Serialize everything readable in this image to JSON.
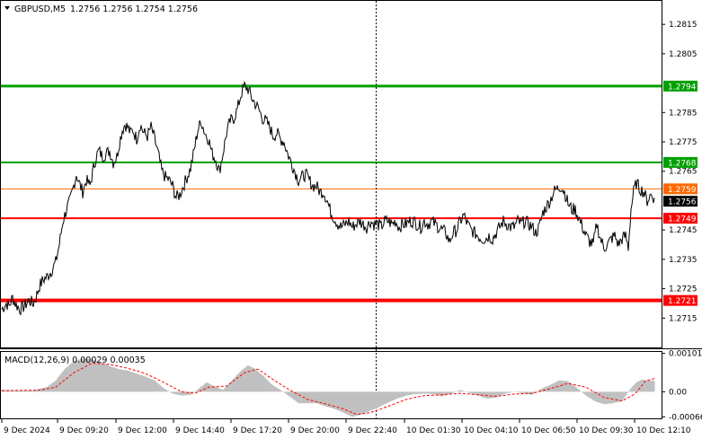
{
  "window": {
    "symbol": "GBPUSD,M5",
    "ohlc": "1.2756 1.2756 1.2754 1.2756"
  },
  "price_axis": {
    "ticks": [
      "1.2815",
      "1.2805",
      "1.2785",
      "1.2775",
      "1.2765",
      "1.2745",
      "1.2735",
      "1.2725",
      "1.2715"
    ],
    "range": [
      1.2705,
      1.2823
    ]
  },
  "levels": [
    {
      "price": 1.2794,
      "label": "1.2794",
      "color": "#00a000"
    },
    {
      "price": 1.2768,
      "label": "1.2768",
      "color": "#00a000"
    },
    {
      "price": 1.2759,
      "label": "1.2759",
      "color": "#ff6a00"
    },
    {
      "price": 1.2749,
      "label": "1.2749",
      "color": "#ff0000"
    },
    {
      "price": 1.2721,
      "label": "1.2721",
      "color": "#ff0000"
    }
  ],
  "current_price": {
    "label": "1.2756",
    "price": 1.2756,
    "color": "#000000"
  },
  "time_axis": {
    "labels": [
      "9 Dec 2024",
      "9 Dec 09:20",
      "9 Dec 12:00",
      "9 Dec 14:40",
      "9 Dec 17:20",
      "9 Dec 20:00",
      "9 Dec 22:40",
      "10 Dec 01:30",
      "10 Dec 04:10",
      "10 Dec 06:50",
      "10 Dec 09:30",
      "10 Dec 12:10"
    ]
  },
  "macd": {
    "title": "MACD(12,26,9) 0.00029 0.00035",
    "ticks": [
      "0.00101",
      "0.00",
      "-0.00066"
    ],
    "range": [
      -0.0007,
      0.00105
    ]
  },
  "chart_data": {
    "type": "line",
    "title": "GBPUSD,M5 1.2756 1.2756 1.2754 1.2756",
    "xlabel": "",
    "ylabel": "",
    "ylim": [
      1.2705,
      1.2823
    ],
    "price_keypoints": [
      [
        0,
        1.2718
      ],
      [
        5,
        1.272
      ],
      [
        8,
        1.2719
      ],
      [
        12,
        1.2722
      ],
      [
        15,
        1.272
      ],
      [
        20,
        1.2718
      ],
      [
        25,
        1.2719
      ],
      [
        30,
        1.2721
      ],
      [
        35,
        1.272
      ],
      [
        38,
        1.2722
      ],
      [
        42,
        1.2726
      ],
      [
        46,
        1.2728
      ],
      [
        50,
        1.2729
      ],
      [
        55,
        1.2731
      ],
      [
        60,
        1.2734
      ],
      [
        64,
        1.274
      ],
      [
        68,
        1.2748
      ],
      [
        72,
        1.2752
      ],
      [
        76,
        1.2755
      ],
      [
        80,
        1.276
      ],
      [
        83,
        1.2764
      ],
      [
        86,
        1.2761
      ],
      [
        90,
        1.2758
      ],
      [
        94,
        1.2762
      ],
      [
        98,
        1.276
      ],
      [
        102,
        1.2766
      ],
      [
        105,
        1.277
      ],
      [
        108,
        1.2772
      ],
      [
        112,
        1.277
      ],
      [
        116,
        1.2771
      ],
      [
        120,
        1.2772
      ],
      [
        124,
        1.2768
      ],
      [
        128,
        1.277
      ],
      [
        131,
        1.2775
      ],
      [
        134,
        1.2779
      ],
      [
        137,
        1.2781
      ],
      [
        140,
        1.278
      ],
      [
        143,
        1.2778
      ],
      [
        146,
        1.2779
      ],
      [
        150,
        1.2776
      ],
      [
        154,
        1.2781
      ],
      [
        158,
        1.2778
      ],
      [
        162,
        1.2777
      ],
      [
        166,
        1.278
      ],
      [
        170,
        1.2776
      ],
      [
        174,
        1.2771
      ],
      [
        178,
        1.2765
      ],
      [
        182,
        1.2763
      ],
      [
        186,
        1.2762
      ],
      [
        190,
        1.276
      ],
      [
        194,
        1.2756
      ],
      [
        198,
        1.2757
      ],
      [
        202,
        1.276
      ],
      [
        206,
        1.2763
      ],
      [
        210,
        1.2766
      ],
      [
        214,
        1.2772
      ],
      [
        218,
        1.2779
      ],
      [
        222,
        1.2782
      ],
      [
        226,
        1.2778
      ],
      [
        230,
        1.2776
      ],
      [
        234,
        1.2771
      ],
      [
        238,
        1.2769
      ],
      [
        242,
        1.2765
      ],
      [
        246,
        1.2771
      ],
      [
        250,
        1.2778
      ],
      [
        254,
        1.2782
      ],
      [
        258,
        1.2783
      ],
      [
        262,
        1.2786
      ],
      [
        266,
        1.2791
      ],
      [
        270,
        1.2794
      ],
      [
        274,
        1.2793
      ],
      [
        278,
        1.279
      ],
      [
        282,
        1.2788
      ],
      [
        286,
        1.2786
      ],
      [
        290,
        1.2783
      ],
      [
        294,
        1.2782
      ],
      [
        298,
        1.278
      ],
      [
        302,
        1.2777
      ],
      [
        306,
        1.2778
      ],
      [
        310,
        1.2776
      ],
      [
        314,
        1.2775
      ],
      [
        318,
        1.2771
      ],
      [
        322,
        1.2768
      ],
      [
        326,
        1.2765
      ],
      [
        330,
        1.2762
      ],
      [
        334,
        1.2763
      ],
      [
        338,
        1.2764
      ],
      [
        342,
        1.2762
      ],
      [
        346,
        1.276
      ],
      [
        350,
        1.276
      ],
      [
        354,
        1.2758
      ],
      [
        358,
        1.2758
      ],
      [
        362,
        1.2755
      ],
      [
        366,
        1.2751
      ],
      [
        370,
        1.2749
      ],
      [
        374,
        1.2747
      ],
      [
        378,
        1.2746
      ],
      [
        382,
        1.2747
      ],
      [
        386,
        1.2748
      ],
      [
        390,
        1.2746
      ],
      [
        394,
        1.2747
      ],
      [
        398,
        1.2748
      ],
      [
        402,
        1.2747
      ],
      [
        406,
        1.2746
      ],
      [
        410,
        1.2748
      ],
      [
        414,
        1.2747
      ],
      [
        418,
        1.2747
      ],
      [
        422,
        1.2746
      ],
      [
        426,
        1.2748
      ],
      [
        430,
        1.2748
      ],
      [
        434,
        1.2747
      ],
      [
        438,
        1.2748
      ],
      [
        442,
        1.2746
      ],
      [
        446,
        1.2747
      ],
      [
        450,
        1.2747
      ],
      [
        454,
        1.2748
      ],
      [
        458,
        1.2748
      ],
      [
        462,
        1.2747
      ],
      [
        466,
        1.2746
      ],
      [
        470,
        1.2748
      ],
      [
        474,
        1.2747
      ],
      [
        478,
        1.2748
      ],
      [
        482,
        1.2747
      ],
      [
        486,
        1.2746
      ],
      [
        490,
        1.2745
      ],
      [
        494,
        1.2744
      ],
      [
        498,
        1.2741
      ],
      [
        502,
        1.2744
      ],
      [
        506,
        1.2745
      ],
      [
        510,
        1.2748
      ],
      [
        514,
        1.275
      ],
      [
        518,
        1.2747
      ],
      [
        522,
        1.2745
      ],
      [
        526,
        1.2744
      ],
      [
        530,
        1.2743
      ],
      [
        534,
        1.2742
      ],
      [
        538,
        1.2742
      ],
      [
        542,
        1.2743
      ],
      [
        546,
        1.2742
      ],
      [
        550,
        1.2744
      ],
      [
        554,
        1.2746
      ],
      [
        558,
        1.2748
      ],
      [
        562,
        1.2747
      ],
      [
        566,
        1.2746
      ],
      [
        570,
        1.2746
      ],
      [
        574,
        1.2748
      ],
      [
        578,
        1.2747
      ],
      [
        582,
        1.2748
      ],
      [
        586,
        1.2747
      ],
      [
        590,
        1.2746
      ],
      [
        594,
        1.2744
      ],
      [
        598,
        1.2746
      ],
      [
        602,
        1.2751
      ],
      [
        606,
        1.2753
      ],
      [
        610,
        1.2755
      ],
      [
        614,
        1.2758
      ],
      [
        618,
        1.2759
      ],
      [
        622,
        1.276
      ],
      [
        626,
        1.2758
      ],
      [
        630,
        1.2754
      ],
      [
        634,
        1.2752
      ],
      [
        638,
        1.2752
      ],
      [
        642,
        1.2749
      ],
      [
        646,
        1.2746
      ],
      [
        650,
        1.2743
      ],
      [
        654,
        1.2741
      ],
      [
        658,
        1.274
      ],
      [
        662,
        1.2747
      ],
      [
        666,
        1.2742
      ],
      [
        670,
        1.2739
      ],
      [
        674,
        1.274
      ],
      [
        678,
        1.2742
      ],
      [
        682,
        1.2743
      ],
      [
        686,
        1.274
      ],
      [
        690,
        1.2742
      ],
      [
        694,
        1.2743
      ],
      [
        697,
        1.2739
      ],
      [
        700,
        1.2752
      ],
      [
        703,
        1.2758
      ],
      [
        706,
        1.2761
      ],
      [
        710,
        1.2759
      ],
      [
        714,
        1.2758
      ],
      [
        718,
        1.2755
      ],
      [
        722,
        1.2757
      ],
      [
        726,
        1.2756
      ]
    ],
    "macd_histogram_keypoints": [
      [
        0,
        5e-05
      ],
      [
        20,
        3e-05
      ],
      [
        35,
        4e-05
      ],
      [
        50,
        0.00012
      ],
      [
        60,
        0.0003
      ],
      [
        70,
        0.0006
      ],
      [
        80,
        0.0008
      ],
      [
        90,
        0.00088
      ],
      [
        100,
        0.00086
      ],
      [
        110,
        0.00078
      ],
      [
        120,
        0.00068
      ],
      [
        130,
        0.0006
      ],
      [
        140,
        0.00056
      ],
      [
        150,
        0.00048
      ],
      [
        160,
        0.0004
      ],
      [
        170,
        0.0003
      ],
      [
        180,
        0.0001
      ],
      [
        190,
        -5e-05
      ],
      [
        200,
        -0.0001
      ],
      [
        210,
        -8e-05
      ],
      [
        220,
        0.0001
      ],
      [
        228,
        0.00025
      ],
      [
        236,
        0.00015
      ],
      [
        246,
        5e-05
      ],
      [
        256,
        0.0003
      ],
      [
        266,
        0.00055
      ],
      [
        274,
        0.0007
      ],
      [
        282,
        0.0006
      ],
      [
        292,
        0.0004
      ],
      [
        300,
        0.0002
      ],
      [
        310,
        5e-05
      ],
      [
        320,
        -0.00012
      ],
      [
        330,
        -0.0003
      ],
      [
        340,
        -0.0003
      ],
      [
        350,
        -0.0003
      ],
      [
        360,
        -0.00038
      ],
      [
        370,
        -0.00045
      ],
      [
        380,
        -0.00055
      ],
      [
        390,
        -0.00066
      ],
      [
        400,
        -0.0006
      ],
      [
        410,
        -0.0005
      ],
      [
        420,
        -0.0004
      ],
      [
        430,
        -0.00028
      ],
      [
        440,
        -0.00018
      ],
      [
        450,
        -0.0001
      ],
      [
        460,
        -6e-05
      ],
      [
        470,
        -5e-05
      ],
      [
        480,
        -6e-05
      ],
      [
        490,
        -0.00012
      ],
      [
        500,
        -5e-05
      ],
      [
        510,
        5e-05
      ],
      [
        520,
        -3e-05
      ],
      [
        530,
        -0.0001
      ],
      [
        540,
        -0.00018
      ],
      [
        550,
        -0.00015
      ],
      [
        560,
        -5e-05
      ],
      [
        570,
        0.0
      ],
      [
        580,
        -4e-05
      ],
      [
        590,
        -8e-05
      ],
      [
        600,
        8e-05
      ],
      [
        610,
        0.00018
      ],
      [
        620,
        0.0003
      ],
      [
        630,
        0.00028
      ],
      [
        640,
        0.0001
      ],
      [
        650,
        -0.0001
      ],
      [
        660,
        -0.00025
      ],
      [
        670,
        -0.00033
      ],
      [
        680,
        -0.0003
      ],
      [
        690,
        -0.00025
      ],
      [
        700,
        0.0001
      ],
      [
        706,
        0.00025
      ],
      [
        712,
        0.00032
      ],
      [
        718,
        0.0003
      ],
      [
        726,
        0.00029
      ]
    ],
    "macd_signal_keypoints": [
      [
        0,
        3e-05
      ],
      [
        40,
        4e-05
      ],
      [
        60,
        0.00012
      ],
      [
        80,
        0.0005
      ],
      [
        100,
        0.00075
      ],
      [
        120,
        0.00072
      ],
      [
        140,
        0.00062
      ],
      [
        160,
        0.00048
      ],
      [
        180,
        0.00025
      ],
      [
        200,
        0.0
      ],
      [
        215,
        -4e-05
      ],
      [
        230,
        0.00012
      ],
      [
        250,
        0.00015
      ],
      [
        270,
        0.0005
      ],
      [
        285,
        0.0006
      ],
      [
        300,
        0.00035
      ],
      [
        320,
        5e-05
      ],
      [
        340,
        -0.0002
      ],
      [
        360,
        -0.00032
      ],
      [
        380,
        -0.00045
      ],
      [
        395,
        -0.0006
      ],
      [
        410,
        -0.00055
      ],
      [
        430,
        -0.00038
      ],
      [
        450,
        -0.0002
      ],
      [
        470,
        -0.0001
      ],
      [
        490,
        -8e-05
      ],
      [
        510,
        -4e-05
      ],
      [
        530,
        -8e-05
      ],
      [
        550,
        -0.00012
      ],
      [
        570,
        -6e-05
      ],
      [
        590,
        -4e-05
      ],
      [
        610,
        8e-05
      ],
      [
        630,
        0.00022
      ],
      [
        650,
        0.00012
      ],
      [
        670,
        -0.00015
      ],
      [
        690,
        -0.00024
      ],
      [
        705,
        -5e-05
      ],
      [
        716,
        0.00028
      ],
      [
        726,
        0.00035
      ]
    ]
  }
}
